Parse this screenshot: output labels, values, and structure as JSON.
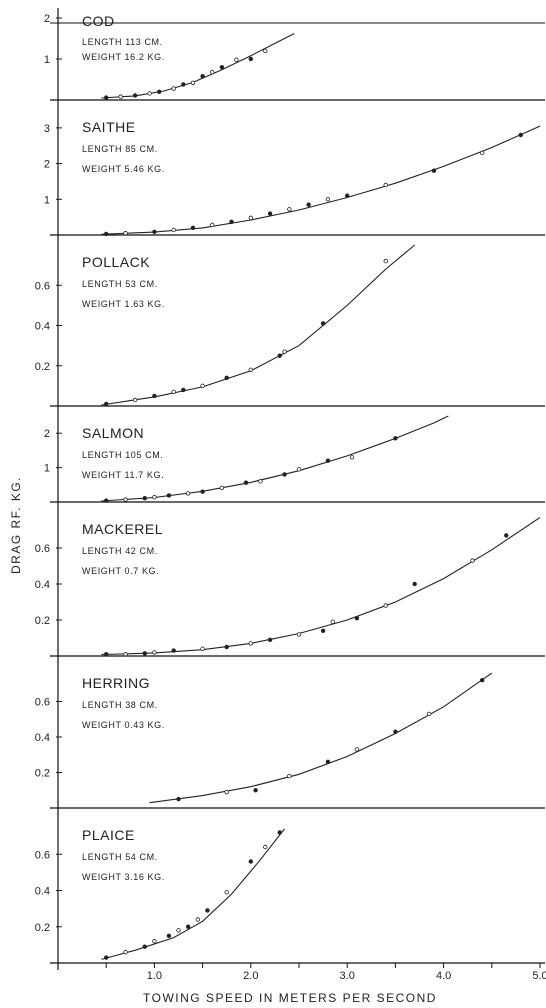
{
  "chart_data": {
    "type": "scatter",
    "xlabel": "TOWING SPEED IN METERS PER SECOND",
    "ylabel": "DRAG   RF. KG.",
    "xlim": [
      0,
      5
    ],
    "x_ticks": [
      "1.0",
      "2.0",
      "3.0",
      "4.0",
      "5.0"
    ],
    "panels": [
      {
        "name": "COD",
        "length": "LENGTH 113 CM.",
        "weight": "WEIGHT  16.2 KG.",
        "ylim": [
          0,
          2.0
        ],
        "y_ticks": [
          "1",
          "2"
        ],
        "points": [
          [
            0.5,
            0.06
          ],
          [
            0.65,
            0.08
          ],
          [
            0.8,
            0.11
          ],
          [
            0.95,
            0.16
          ],
          [
            1.05,
            0.2
          ],
          [
            1.2,
            0.28
          ],
          [
            1.3,
            0.38
          ],
          [
            1.4,
            0.42
          ],
          [
            1.5,
            0.58
          ],
          [
            1.6,
            0.68
          ],
          [
            1.7,
            0.8
          ],
          [
            1.85,
            0.98
          ],
          [
            2.0,
            1.0
          ],
          [
            2.15,
            1.2
          ]
        ],
        "curve": [
          [
            0.45,
            0.05
          ],
          [
            0.8,
            0.1
          ],
          [
            1.1,
            0.22
          ],
          [
            1.4,
            0.43
          ],
          [
            1.7,
            0.74
          ],
          [
            2.0,
            1.08
          ],
          [
            2.25,
            1.38
          ],
          [
            2.45,
            1.62
          ]
        ]
      },
      {
        "name": "SAITHE",
        "length": "LENGTH  85 CM.",
        "weight": "WEIGHT  5.46 KG.",
        "ylim": [
          0,
          3.5
        ],
        "y_ticks": [
          "1",
          "2",
          "3"
        ],
        "points": [
          [
            0.5,
            0.03
          ],
          [
            0.7,
            0.05
          ],
          [
            1.0,
            0.09
          ],
          [
            1.2,
            0.14
          ],
          [
            1.4,
            0.2
          ],
          [
            1.6,
            0.28
          ],
          [
            1.8,
            0.37
          ],
          [
            2.0,
            0.48
          ],
          [
            2.2,
            0.6
          ],
          [
            2.4,
            0.72
          ],
          [
            2.6,
            0.85
          ],
          [
            2.8,
            1.0
          ],
          [
            3.0,
            1.1
          ],
          [
            3.4,
            1.4
          ],
          [
            3.9,
            1.8
          ],
          [
            4.4,
            2.3
          ],
          [
            4.8,
            2.8
          ]
        ],
        "curve": [
          [
            0.45,
            0.02
          ],
          [
            1.0,
            0.08
          ],
          [
            1.5,
            0.2
          ],
          [
            2.0,
            0.42
          ],
          [
            2.5,
            0.7
          ],
          [
            3.0,
            1.05
          ],
          [
            3.5,
            1.45
          ],
          [
            4.0,
            1.92
          ],
          [
            4.5,
            2.45
          ],
          [
            5.0,
            3.05
          ]
        ]
      },
      {
        "name": "POLLACK",
        "length": "LENGTH  53 CM.",
        "weight": "WEIGHT   1.63 KG.",
        "ylim": [
          0,
          0.8
        ],
        "y_ticks": [
          "0.2",
          "0.4",
          "0.6"
        ],
        "points": [
          [
            0.5,
            0.01
          ],
          [
            0.8,
            0.03
          ],
          [
            1.0,
            0.05
          ],
          [
            1.2,
            0.07
          ],
          [
            1.3,
            0.08
          ],
          [
            1.5,
            0.1
          ],
          [
            1.75,
            0.14
          ],
          [
            2.0,
            0.18
          ],
          [
            2.3,
            0.25
          ],
          [
            2.35,
            0.27
          ],
          [
            2.75,
            0.41
          ],
          [
            3.4,
            0.72
          ]
        ],
        "curve": [
          [
            0.45,
            0.005
          ],
          [
            1.0,
            0.045
          ],
          [
            1.5,
            0.095
          ],
          [
            2.0,
            0.175
          ],
          [
            2.5,
            0.3
          ],
          [
            3.0,
            0.5
          ],
          [
            3.4,
            0.68
          ],
          [
            3.7,
            0.8
          ]
        ]
      },
      {
        "name": "SALMON",
        "length": "LENGTH 105 CM.",
        "weight": "WEIGHT  11.7  KG.",
        "ylim": [
          0,
          2.5
        ],
        "y_ticks": [
          "1",
          "2"
        ],
        "points": [
          [
            0.5,
            0.04
          ],
          [
            0.7,
            0.07
          ],
          [
            0.9,
            0.11
          ],
          [
            1.0,
            0.14
          ],
          [
            1.15,
            0.19
          ],
          [
            1.35,
            0.25
          ],
          [
            1.5,
            0.3
          ],
          [
            1.7,
            0.41
          ],
          [
            1.95,
            0.56
          ],
          [
            2.1,
            0.6
          ],
          [
            2.35,
            0.8
          ],
          [
            2.5,
            0.95
          ],
          [
            2.8,
            1.2
          ],
          [
            3.05,
            1.3
          ],
          [
            3.5,
            1.85
          ]
        ],
        "curve": [
          [
            0.45,
            0.03
          ],
          [
            1.0,
            0.13
          ],
          [
            1.5,
            0.31
          ],
          [
            2.0,
            0.57
          ],
          [
            2.5,
            0.91
          ],
          [
            3.0,
            1.34
          ],
          [
            3.5,
            1.85
          ],
          [
            3.9,
            2.3
          ],
          [
            4.05,
            2.5
          ]
        ]
      },
      {
        "name": "MACKEREL",
        "length": "LENGTH  42 CM.",
        "weight": "WEIGHT   0.7  KG.",
        "ylim": [
          0,
          0.8
        ],
        "y_ticks": [
          "0.2",
          "0.4",
          "0.6"
        ],
        "points": [
          [
            0.5,
            0.01
          ],
          [
            0.7,
            0.01
          ],
          [
            0.9,
            0.015
          ],
          [
            1.0,
            0.02
          ],
          [
            1.2,
            0.03
          ],
          [
            1.5,
            0.04
          ],
          [
            1.75,
            0.05
          ],
          [
            2.0,
            0.07
          ],
          [
            2.2,
            0.09
          ],
          [
            2.5,
            0.12
          ],
          [
            2.75,
            0.14
          ],
          [
            2.85,
            0.19
          ],
          [
            3.1,
            0.21
          ],
          [
            3.4,
            0.28
          ],
          [
            3.7,
            0.4
          ],
          [
            4.3,
            0.53
          ],
          [
            4.65,
            0.67
          ]
        ],
        "curve": [
          [
            0.45,
            0.008
          ],
          [
            1.0,
            0.017
          ],
          [
            1.5,
            0.035
          ],
          [
            2.0,
            0.07
          ],
          [
            2.5,
            0.125
          ],
          [
            3.0,
            0.2
          ],
          [
            3.5,
            0.3
          ],
          [
            4.0,
            0.43
          ],
          [
            4.5,
            0.59
          ],
          [
            5.0,
            0.77
          ]
        ]
      },
      {
        "name": "HERRING",
        "length": "LENGTH  38 CM.",
        "weight": "WEIGHT   0.43 KG.",
        "ylim": [
          0,
          0.8
        ],
        "y_ticks": [
          "0.2",
          "0.4",
          "0.6"
        ],
        "points": [
          [
            1.25,
            0.05
          ],
          [
            1.75,
            0.09
          ],
          [
            2.05,
            0.1
          ],
          [
            2.4,
            0.18
          ],
          [
            2.8,
            0.26
          ],
          [
            3.1,
            0.33
          ],
          [
            3.5,
            0.43
          ],
          [
            3.85,
            0.53
          ],
          [
            4.4,
            0.72
          ]
        ],
        "curve": [
          [
            0.95,
            0.03
          ],
          [
            1.5,
            0.07
          ],
          [
            2.0,
            0.12
          ],
          [
            2.5,
            0.19
          ],
          [
            3.0,
            0.29
          ],
          [
            3.5,
            0.42
          ],
          [
            4.0,
            0.57
          ],
          [
            4.5,
            0.76
          ]
        ]
      },
      {
        "name": "PLAICE",
        "length": "LENGTH  54 CM.",
        "weight": "WEIGHT   3.16 KG.",
        "ylim": [
          0,
          0.8
        ],
        "y_ticks": [
          "0.2",
          "0.4",
          "0.6"
        ],
        "points": [
          [
            0.5,
            0.03
          ],
          [
            0.7,
            0.06
          ],
          [
            0.9,
            0.09
          ],
          [
            1.0,
            0.12
          ],
          [
            1.15,
            0.15
          ],
          [
            1.25,
            0.18
          ],
          [
            1.35,
            0.2
          ],
          [
            1.45,
            0.24
          ],
          [
            1.55,
            0.29
          ],
          [
            1.75,
            0.39
          ],
          [
            2.0,
            0.56
          ],
          [
            2.15,
            0.64
          ],
          [
            2.3,
            0.72
          ]
        ],
        "curve": [
          [
            0.45,
            0.02
          ],
          [
            0.8,
            0.07
          ],
          [
            1.2,
            0.14
          ],
          [
            1.5,
            0.23
          ],
          [
            1.8,
            0.38
          ],
          [
            2.1,
            0.57
          ],
          [
            2.35,
            0.74
          ]
        ]
      }
    ]
  }
}
